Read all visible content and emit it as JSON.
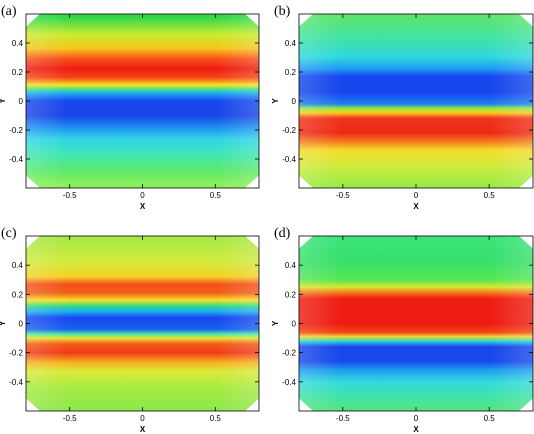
{
  "figure": {
    "panels": [
      {
        "label": "(a)",
        "xlabel": "X",
        "ylabel": "Y",
        "xticks": [
          "-0.5",
          "0",
          "0.5"
        ],
        "yticks": [
          "0.4",
          "0.2",
          "0",
          "-0.2",
          "-0.4"
        ],
        "bands": [
          {
            "y": 0.58,
            "color": "#2ed84a"
          },
          {
            "y": 0.46,
            "color": "#c9ec2e"
          },
          {
            "y": 0.36,
            "color": "#f7c21b"
          },
          {
            "y": 0.29,
            "color": "#f6501a"
          },
          {
            "y": 0.22,
            "color": "#ee1c12"
          },
          {
            "y": 0.16,
            "color": "#f44a16"
          },
          {
            "y": 0.11,
            "color": "#f6e321"
          },
          {
            "y": 0.08,
            "color": "#42e08a"
          },
          {
            "y": 0.05,
            "color": "#1aa3f5"
          },
          {
            "y": 0.0,
            "color": "#1648ee"
          },
          {
            "y": -0.1,
            "color": "#1a43e6"
          },
          {
            "y": -0.18,
            "color": "#1b8ef1"
          },
          {
            "y": -0.26,
            "color": "#2fd3e8"
          },
          {
            "y": -0.36,
            "color": "#3de6b8"
          },
          {
            "y": -0.48,
            "color": "#5ce96a"
          },
          {
            "y": -0.58,
            "color": "#8bef5a"
          }
        ]
      },
      {
        "label": "(b)",
        "xlabel": "X",
        "ylabel": "Y",
        "xticks": [
          "-0.5",
          "0",
          "0.5"
        ],
        "yticks": [
          "0.4",
          "0.2",
          "0",
          "-0.2",
          "-0.4"
        ],
        "bands": [
          {
            "y": 0.58,
            "color": "#5be56e"
          },
          {
            "y": 0.42,
            "color": "#3fe2a8"
          },
          {
            "y": 0.3,
            "color": "#2dd6e0"
          },
          {
            "y": 0.22,
            "color": "#1e97f3"
          },
          {
            "y": 0.17,
            "color": "#1747ef"
          },
          {
            "y": 0.06,
            "color": "#1745ec"
          },
          {
            "y": -0.02,
            "color": "#1c7ff2"
          },
          {
            "y": -0.05,
            "color": "#8ce840"
          },
          {
            "y": -0.08,
            "color": "#f7cf22"
          },
          {
            "y": -0.12,
            "color": "#f0321a"
          },
          {
            "y": -0.22,
            "color": "#ee2a14"
          },
          {
            "y": -0.28,
            "color": "#f57a1c"
          },
          {
            "y": -0.34,
            "color": "#f5dc28"
          },
          {
            "y": -0.44,
            "color": "#d1ea3a"
          },
          {
            "y": -0.58,
            "color": "#9ceb46"
          }
        ]
      },
      {
        "label": "(c)",
        "xlabel": "X",
        "ylabel": "Y",
        "xticks": [
          "-0.5",
          "0",
          "0.5"
        ],
        "yticks": [
          "0.4",
          "0.2",
          "0",
          "-0.2",
          "-0.4"
        ],
        "bands": [
          {
            "y": 0.58,
            "color": "#a9e845"
          },
          {
            "y": 0.42,
            "color": "#d2ea3c"
          },
          {
            "y": 0.32,
            "color": "#f6cf24"
          },
          {
            "y": 0.27,
            "color": "#f3501a"
          },
          {
            "y": 0.21,
            "color": "#f15e1a"
          },
          {
            "y": 0.16,
            "color": "#f7e021"
          },
          {
            "y": 0.12,
            "color": "#2fdc86"
          },
          {
            "y": 0.08,
            "color": "#1ea8f6"
          },
          {
            "y": 0.04,
            "color": "#1648ef"
          },
          {
            "y": -0.04,
            "color": "#1a5fef"
          },
          {
            "y": -0.07,
            "color": "#3fe3b0"
          },
          {
            "y": -0.1,
            "color": "#e4e630"
          },
          {
            "y": -0.14,
            "color": "#f35a1a"
          },
          {
            "y": -0.2,
            "color": "#f03a17"
          },
          {
            "y": -0.27,
            "color": "#f7b41e"
          },
          {
            "y": -0.33,
            "color": "#d9eb38"
          },
          {
            "y": -0.44,
            "color": "#a7ea42"
          },
          {
            "y": -0.58,
            "color": "#8fe84a"
          }
        ]
      },
      {
        "label": "(d)",
        "xlabel": "X",
        "ylabel": "Y",
        "xticks": [
          "-0.5",
          "0",
          "0.5"
        ],
        "yticks": [
          "0.4",
          "0.2",
          "0",
          "-0.2",
          "-0.4"
        ],
        "bands": [
          {
            "y": 0.58,
            "color": "#3be37a"
          },
          {
            "y": 0.44,
            "color": "#35e06c"
          },
          {
            "y": 0.3,
            "color": "#55e654"
          },
          {
            "y": 0.25,
            "color": "#d6e72e"
          },
          {
            "y": 0.21,
            "color": "#f7731c"
          },
          {
            "y": 0.17,
            "color": "#ee1e12"
          },
          {
            "y": 0.0,
            "color": "#ee1c12"
          },
          {
            "y": -0.06,
            "color": "#f04416"
          },
          {
            "y": -0.09,
            "color": "#f3d624"
          },
          {
            "y": -0.12,
            "color": "#2bd7d6"
          },
          {
            "y": -0.16,
            "color": "#1845ec"
          },
          {
            "y": -0.26,
            "color": "#1949ea"
          },
          {
            "y": -0.32,
            "color": "#1f9ef0"
          },
          {
            "y": -0.4,
            "color": "#33d9dd"
          },
          {
            "y": -0.5,
            "color": "#3ee3a8"
          },
          {
            "y": -0.58,
            "color": "#52e482"
          }
        ]
      }
    ]
  }
}
